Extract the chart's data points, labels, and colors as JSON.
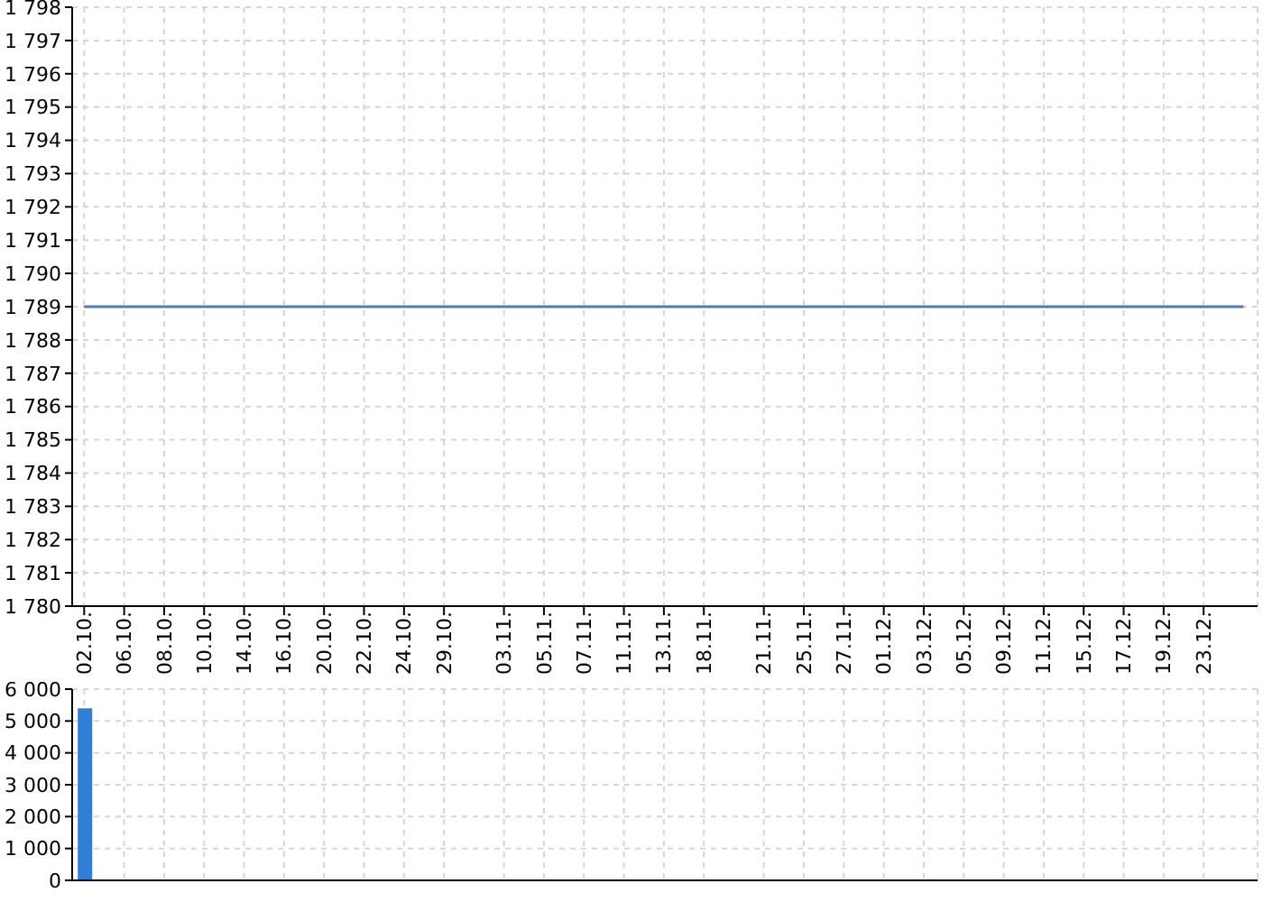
{
  "chart_data": [
    {
      "type": "line",
      "categories": [
        "02.10.",
        null,
        "06.10.",
        null,
        "08.10.",
        null,
        "10.10.",
        null,
        "14.10.",
        null,
        "16.10.",
        null,
        "20.10.",
        null,
        "22.10.",
        null,
        "24.10.",
        null,
        "29.10.",
        null,
        null,
        "03.11.",
        null,
        "05.11.",
        null,
        "07.11.",
        null,
        "11.11.",
        null,
        "13.11.",
        null,
        "18.11.",
        null,
        null,
        "21.11.",
        null,
        "25.11.",
        null,
        "27.11.",
        null,
        "01.12.",
        null,
        "03.12.",
        null,
        "05.12.",
        null,
        "09.12.",
        null,
        "11.12.",
        null,
        "15.12.",
        null,
        "17.12.",
        null,
        "19.12.",
        null,
        "23.12.",
        null,
        null
      ],
      "series": [
        {
          "color": "#4a7ebb",
          "values": [
            1789,
            1789,
            1789,
            1789,
            1789,
            1789,
            1789,
            1789,
            1789,
            1789,
            1789,
            1789,
            1789,
            1789,
            1789,
            1789,
            1789,
            1789,
            1789,
            1789,
            1789,
            1789,
            1789,
            1789,
            1789,
            1789,
            1789,
            1789,
            1789,
            1789,
            1789,
            1789,
            1789,
            1789,
            1789,
            1789,
            1789,
            1789,
            1789,
            1789,
            1789,
            1789,
            1789,
            1789,
            1789,
            1789,
            1789,
            1789,
            1789,
            1789,
            1789,
            1789,
            1789,
            1789,
            1789,
            1789,
            1789,
            1789,
            1789
          ]
        }
      ],
      "ylim": [
        1780,
        1798
      ],
      "yticks": [
        {
          "value": 1780,
          "label": "1 780"
        },
        {
          "value": 1781,
          "label": "1 781"
        },
        {
          "value": 1782,
          "label": "1 782"
        },
        {
          "value": 1783,
          "label": "1 783"
        },
        {
          "value": 1784,
          "label": "1 784"
        },
        {
          "value": 1785,
          "label": "1 785"
        },
        {
          "value": 1786,
          "label": "1 786"
        },
        {
          "value": 1787,
          "label": "1 787"
        },
        {
          "value": 1788,
          "label": "1 788"
        },
        {
          "value": 1789,
          "label": "1 789"
        },
        {
          "value": 1790,
          "label": "1 790"
        },
        {
          "value": 1791,
          "label": "1 791"
        },
        {
          "value": 1792,
          "label": "1 792"
        },
        {
          "value": 1793,
          "label": "1 793"
        },
        {
          "value": 1794,
          "label": "1 794"
        },
        {
          "value": 1795,
          "label": "1 795"
        },
        {
          "value": 1796,
          "label": "1 796"
        },
        {
          "value": 1797,
          "label": "1 797"
        },
        {
          "value": 1798,
          "label": "1 798"
        }
      ],
      "grid": true,
      "legend": false,
      "marker": "none"
    },
    {
      "type": "bar",
      "categories": [
        "02.10.",
        null,
        "06.10.",
        null,
        "08.10.",
        null,
        "10.10.",
        null,
        "14.10.",
        null,
        "16.10.",
        null,
        "20.10.",
        null,
        "22.10.",
        null,
        "24.10.",
        null,
        "29.10.",
        null,
        null,
        "03.11.",
        null,
        "05.11.",
        null,
        "07.11.",
        null,
        "11.11.",
        null,
        "13.11.",
        null,
        "18.11.",
        null,
        null,
        "21.11.",
        null,
        "25.11.",
        null,
        "27.11.",
        null,
        "01.12.",
        null,
        "03.12.",
        null,
        "05.12.",
        null,
        "09.12.",
        null,
        "11.12.",
        null,
        "15.12.",
        null,
        "17.12.",
        null,
        "19.12.",
        null,
        "23.12.",
        null,
        null
      ],
      "series": [
        {
          "color": "#2f7fd8",
          "values": [
            5400,
            null,
            null,
            null,
            null,
            null,
            null,
            null,
            null,
            null,
            null,
            null,
            null,
            null,
            null,
            null,
            null,
            null,
            null,
            null,
            null,
            null,
            null,
            null,
            null,
            null,
            null,
            null,
            null,
            null,
            null,
            null,
            null,
            null,
            null,
            null,
            null,
            null,
            null,
            null,
            null,
            null,
            null,
            null,
            null,
            null,
            null,
            null,
            null,
            null,
            null,
            null,
            null,
            null,
            null,
            null,
            null,
            null,
            null
          ]
        }
      ],
      "ylim": [
        0,
        6000
      ],
      "yticks": [
        0,
        {
          "value": 1000,
          "label": "1 000"
        },
        {
          "value": 2000,
          "label": "2 000"
        },
        {
          "value": 3000,
          "label": "3 000"
        },
        {
          "value": 4000,
          "label": "4 000"
        },
        {
          "value": 5000,
          "label": "5 000"
        },
        {
          "value": 6000,
          "label": "6 000"
        }
      ],
      "tick_labels": "y",
      "grid": true,
      "legend": false
    }
  ]
}
